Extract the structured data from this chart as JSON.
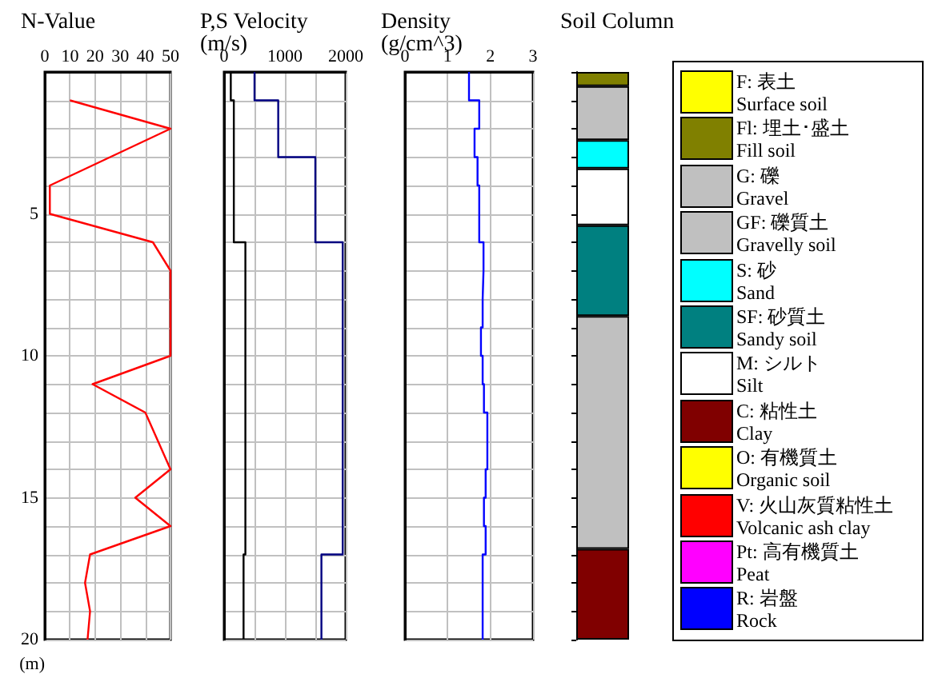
{
  "chart_data": [
    {
      "type": "line",
      "title": "N-Value",
      "ylabel": "(m)",
      "marker": "none",
      "grid": true,
      "xlim": [
        0,
        50
      ],
      "xticks": [
        0,
        10,
        20,
        30,
        40,
        50
      ],
      "ylim": [
        20,
        0
      ],
      "yticks": [
        {
          "value": 0,
          "label": null
        },
        {
          "value": 1,
          "label": null
        },
        {
          "value": 2,
          "label": null
        },
        {
          "value": 3,
          "label": null
        },
        {
          "value": 4,
          "label": null
        },
        5,
        {
          "value": 6,
          "label": null
        },
        {
          "value": 7,
          "label": null
        },
        {
          "value": 8,
          "label": null
        },
        {
          "value": 9,
          "label": null
        },
        10,
        {
          "value": 11,
          "label": null
        },
        {
          "value": 12,
          "label": null
        },
        {
          "value": 13,
          "label": null
        },
        {
          "value": 14,
          "label": null
        },
        15,
        {
          "value": 16,
          "label": null
        },
        {
          "value": 17,
          "label": null
        },
        {
          "value": 18,
          "label": null
        },
        {
          "value": 19,
          "label": null
        },
        20
      ],
      "series": [
        {
          "color": "#ff0000",
          "x": [
            10,
            50,
            26,
            2,
            2,
            43,
            50,
            50,
            50,
            50,
            19,
            40,
            45,
            50,
            36,
            50,
            18,
            16,
            18,
            17
          ],
          "values": [
            1,
            2,
            3,
            4,
            5,
            6,
            7,
            8,
            9,
            10,
            11,
            12,
            13,
            14,
            15,
            16,
            17,
            18,
            19,
            20
          ]
        }
      ]
    },
    {
      "type": "line",
      "title": "P,S Velocity",
      "subtitle": "(m/s)",
      "marker": "none",
      "grid": true,
      "tick_labels": "x",
      "xlim": [
        0,
        2000
      ],
      "xticks": [
        0,
        {
          "value": 500,
          "label": null
        },
        1000,
        {
          "value": 1500,
          "label": null
        },
        2000
      ],
      "ylim": [
        20,
        0
      ],
      "yticks": [
        {
          "value": 0,
          "label": null
        },
        {
          "value": 1,
          "label": null
        },
        {
          "value": 2,
          "label": null
        },
        {
          "value": 3,
          "label": null
        },
        {
          "value": 4,
          "label": null
        },
        {
          "value": 5,
          "label": null
        },
        {
          "value": 6,
          "label": null
        },
        {
          "value": 7,
          "label": null
        },
        {
          "value": 8,
          "label": null
        },
        {
          "value": 9,
          "label": null
        },
        {
          "value": 10,
          "label": null
        },
        {
          "value": 11,
          "label": null
        },
        {
          "value": 12,
          "label": null
        },
        {
          "value": 13,
          "label": null
        },
        {
          "value": 14,
          "label": null
        },
        {
          "value": 15,
          "label": null
        },
        {
          "value": 16,
          "label": null
        },
        {
          "value": 17,
          "label": null
        },
        {
          "value": 18,
          "label": null
        },
        {
          "value": 19,
          "label": null
        },
        {
          "value": 20,
          "label": null
        }
      ],
      "series": [
        {
          "color": "#000080",
          "x": [
            500,
            500,
            890,
            890,
            1500,
            1500,
            1950,
            1950,
            1600,
            1600
          ],
          "values": [
            0,
            1,
            1,
            3,
            3,
            6,
            6,
            17,
            17,
            20
          ]
        },
        {
          "color": "#000000",
          "x": [
            110,
            110,
            160,
            160,
            350,
            350,
            320,
            320
          ],
          "values": [
            0,
            1,
            1,
            6,
            6,
            17,
            17,
            20
          ]
        }
      ]
    },
    {
      "type": "line",
      "title": "Density",
      "subtitle": "(g/cm^3)",
      "marker": "none",
      "grid": true,
      "tick_labels": "x",
      "xlim": [
        0,
        3
      ],
      "xticks": [
        0,
        1,
        2,
        3
      ],
      "ylim": [
        20,
        0
      ],
      "yticks": [
        {
          "value": 0,
          "label": null
        },
        {
          "value": 1,
          "label": null
        },
        {
          "value": 2,
          "label": null
        },
        {
          "value": 3,
          "label": null
        },
        {
          "value": 4,
          "label": null
        },
        {
          "value": 5,
          "label": null
        },
        {
          "value": 6,
          "label": null
        },
        {
          "value": 7,
          "label": null
        },
        {
          "value": 8,
          "label": null
        },
        {
          "value": 9,
          "label": null
        },
        {
          "value": 10,
          "label": null
        },
        {
          "value": 11,
          "label": null
        },
        {
          "value": 12,
          "label": null
        },
        {
          "value": 13,
          "label": null
        },
        {
          "value": 14,
          "label": null
        },
        {
          "value": 15,
          "label": null
        },
        {
          "value": 16,
          "label": null
        },
        {
          "value": 17,
          "label": null
        },
        {
          "value": 18,
          "label": null
        },
        {
          "value": 19,
          "label": null
        },
        {
          "value": 20,
          "label": null
        }
      ],
      "series": [
        {
          "color": "#0000ff",
          "x": [
            1.5,
            1.5,
            1.74,
            1.74,
            1.63,
            1.63,
            1.7,
            1.7,
            1.74,
            1.74,
            1.84,
            1.84,
            1.82,
            1.82,
            1.82,
            1.82,
            1.78,
            1.78,
            1.82,
            1.82,
            1.85,
            1.85,
            1.93,
            1.93,
            1.89,
            1.89,
            1.85,
            1.85,
            1.89,
            1.89,
            1.82,
            1.82
          ],
          "values": [
            0,
            1,
            1,
            2,
            2,
            3,
            3,
            4,
            4,
            6,
            6,
            7,
            7,
            8,
            8,
            9,
            9,
            10,
            10,
            11,
            11,
            12,
            12,
            14,
            14,
            15,
            15,
            16,
            16,
            17,
            17,
            20
          ]
        }
      ]
    },
    {
      "type": "bar",
      "title": "Soil Column",
      "stacked": true,
      "grid": false,
      "tick_labels": false,
      "categories": [
        null
      ],
      "ylim": [
        20,
        0
      ],
      "yticks": [
        {
          "value": 0,
          "label": null
        },
        {
          "value": 1,
          "label": null
        },
        {
          "value": 2,
          "label": null
        },
        {
          "value": 3,
          "label": null
        },
        {
          "value": 4,
          "label": null
        },
        {
          "value": 5,
          "label": null
        },
        {
          "value": 6,
          "label": null
        },
        {
          "value": 7,
          "label": null
        },
        {
          "value": 8,
          "label": null
        },
        {
          "value": 9,
          "label": null
        },
        {
          "value": 10,
          "label": null
        },
        {
          "value": 11,
          "label": null
        },
        {
          "value": 12,
          "label": null
        },
        {
          "value": 13,
          "label": null
        },
        {
          "value": 14,
          "label": null
        },
        {
          "value": 15,
          "label": null
        },
        {
          "value": 16,
          "label": null
        },
        {
          "value": 17,
          "label": null
        },
        {
          "value": 18,
          "label": null
        },
        {
          "value": 19,
          "label": null
        },
        {
          "value": 20,
          "label": null
        }
      ],
      "series": [
        {
          "color": "#808000",
          "values": [
            0.5
          ]
        },
        {
          "color": "#c0c0c0",
          "values": [
            1.9
          ]
        },
        {
          "color": "#00ffff",
          "values": [
            1.0
          ]
        },
        {
          "color": "#ffffff",
          "values": [
            2.0
          ]
        },
        {
          "color": "#008080",
          "values": [
            3.2
          ]
        },
        {
          "color": "#c0c0c0",
          "values": [
            8.2
          ]
        },
        {
          "color": "#800000",
          "values": [
            3.2
          ]
        }
      ]
    },
    {
      "type": "other",
      "annotations": [
        "F: 表土\nSurface soil",
        "Fl: 埋土･盛土\nFill soil",
        "G: 礫\nGravel",
        "GF: 礫質土\nGravelly soil",
        "S: 砂\nSand",
        "SF: 砂質土\nSandy soil",
        "M: シルト\nSilt",
        "C: 粘性土\nClay",
        "O: 有機質土\nOrganic soil",
        "V: 火山灰質粘性土\nVolcanic ash clay",
        "Pt: 高有機質土\nPeat",
        "R: 岩盤\nRock"
      ],
      "colors": [
        "#ffff00",
        "#808000",
        "#c0c0c0",
        "#c0c0c0",
        "#00ffff",
        "#008080",
        "#ffffff",
        "#800000",
        "#ffff00",
        "#ff0000",
        "#ff00ff",
        "#0000ff"
      ]
    }
  ]
}
